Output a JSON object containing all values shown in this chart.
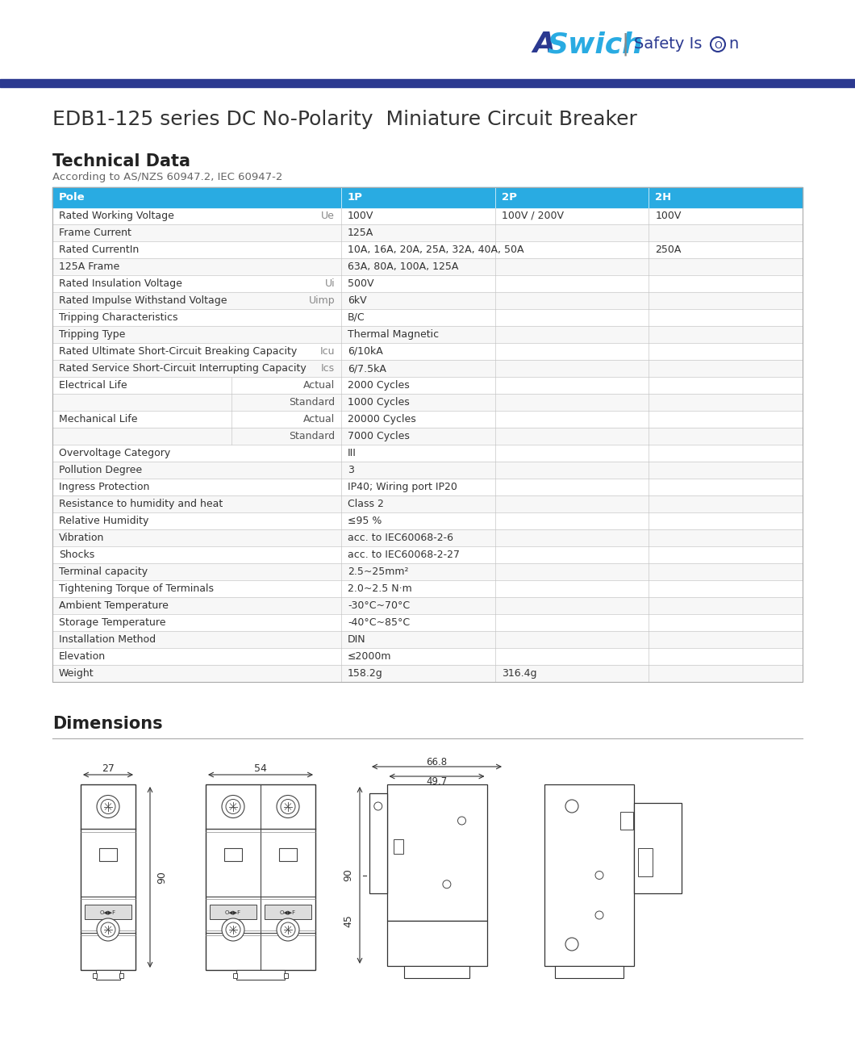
{
  "title": "EDB1-125 series DC No-Polarity  Miniature Circuit Breaker",
  "tech_data_title": "Technical Data",
  "according_to": "According to AS/NZS 60947.2, IEC 60947-2",
  "dimensions_title": "Dimensions",
  "header_bg": "#29ABE2",
  "blue_bar_color": "#2B3990",
  "col_headers": [
    "Pole",
    "1P",
    "2P",
    "2H"
  ],
  "table_rows": [
    {
      "param": "Rated Working Voltage",
      "sub": "Ue",
      "vals": [
        "100V",
        "100V / 200V",
        "100V"
      ],
      "span": false
    },
    {
      "param": "Frame Current",
      "sub": "",
      "vals": [
        "125A",
        "",
        ""
      ],
      "span": true
    },
    {
      "param": "Rated CurrentIn",
      "sub": "",
      "vals": [
        "10A, 16A, 20A, 25A, 32A, 40A, 50A",
        "",
        "250A"
      ],
      "span": false,
      "span12": true
    },
    {
      "param": "125A Frame",
      "sub": "",
      "vals": [
        "63A, 80A, 100A, 125A",
        "",
        ""
      ],
      "span": false,
      "span12": true
    },
    {
      "param": "Rated Insulation Voltage",
      "sub": "Ui",
      "vals": [
        "500V",
        "",
        ""
      ],
      "span": true
    },
    {
      "param": "Rated Impulse Withstand Voltage",
      "sub": "Uimp",
      "vals": [
        "6kV",
        "",
        ""
      ],
      "span": true
    },
    {
      "param": "Tripping Characteristics",
      "sub": "",
      "vals": [
        "B/C",
        "",
        ""
      ],
      "span": true
    },
    {
      "param": "Tripping Type",
      "sub": "",
      "vals": [
        "Thermal Magnetic",
        "",
        ""
      ],
      "span": true
    },
    {
      "param": "Rated Ultimate Short-Circuit Breaking Capacity",
      "sub": "Icu",
      "vals": [
        "6/10kA",
        "",
        ""
      ],
      "span": true
    },
    {
      "param": "Rated Service Short-Circuit Interrupting Capacity",
      "sub": "Ics",
      "vals": [
        "6/7.5kA",
        "",
        ""
      ],
      "span": true
    },
    {
      "param": "Electrical Life",
      "sub2": "Actual",
      "vals": [
        "2000 Cycles",
        "",
        ""
      ],
      "span": true,
      "subrow": true
    },
    {
      "param": "",
      "sub2": "Standard",
      "vals": [
        "1000 Cycles",
        "",
        ""
      ],
      "span": true,
      "subrow": true,
      "continuation": true
    },
    {
      "param": "Mechanical Life",
      "sub2": "Actual",
      "vals": [
        "20000 Cycles",
        "",
        ""
      ],
      "span": true,
      "subrow": true
    },
    {
      "param": "",
      "sub2": "Standard",
      "vals": [
        "7000 Cycles",
        "",
        ""
      ],
      "span": true,
      "subrow": true,
      "continuation": true
    },
    {
      "param": "Overvoltage Category",
      "sub": "",
      "vals": [
        "III",
        "",
        ""
      ],
      "span": true
    },
    {
      "param": "Pollution Degree",
      "sub": "",
      "vals": [
        "3",
        "",
        ""
      ],
      "span": true
    },
    {
      "param": "Ingress Protection",
      "sub": "",
      "vals": [
        "IP40; Wiring port IP20",
        "",
        ""
      ],
      "span": true
    },
    {
      "param": "Resistance to humidity and heat",
      "sub": "",
      "vals": [
        "Class 2",
        "",
        ""
      ],
      "span": true
    },
    {
      "param": "Relative Humidity",
      "sub": "",
      "vals": [
        "≤95 %",
        "",
        ""
      ],
      "span": true
    },
    {
      "param": "Vibration",
      "sub": "",
      "vals": [
        "acc. to IEC60068-2-6",
        "",
        ""
      ],
      "span": true
    },
    {
      "param": "Shocks",
      "sub": "",
      "vals": [
        "acc. to IEC60068-2-27",
        "",
        ""
      ],
      "span": true
    },
    {
      "param": "Terminal capacity",
      "sub": "",
      "vals": [
        "2.5~25mm²",
        "",
        ""
      ],
      "span": true
    },
    {
      "param": "Tightening Torque of Terminals",
      "sub": "",
      "vals": [
        "2.0~2.5 N·m",
        "",
        ""
      ],
      "span": true
    },
    {
      "param": "Ambient Temperature",
      "sub": "",
      "vals": [
        "-30°C~70°C",
        "",
        ""
      ],
      "span": true
    },
    {
      "param": "Storage Temperature",
      "sub": "",
      "vals": [
        "-40°C~85°C",
        "",
        ""
      ],
      "span": true
    },
    {
      "param": "Installation Method",
      "sub": "",
      "vals": [
        "DIN",
        "",
        ""
      ],
      "span": true
    },
    {
      "param": "Elevation",
      "sub": "",
      "vals": [
        "≤2000m",
        "",
        ""
      ],
      "span": true
    },
    {
      "param": "Weight",
      "sub": "",
      "vals": [
        "158.2g",
        "316.4g",
        ""
      ],
      "span": false,
      "span12": false
    }
  ]
}
